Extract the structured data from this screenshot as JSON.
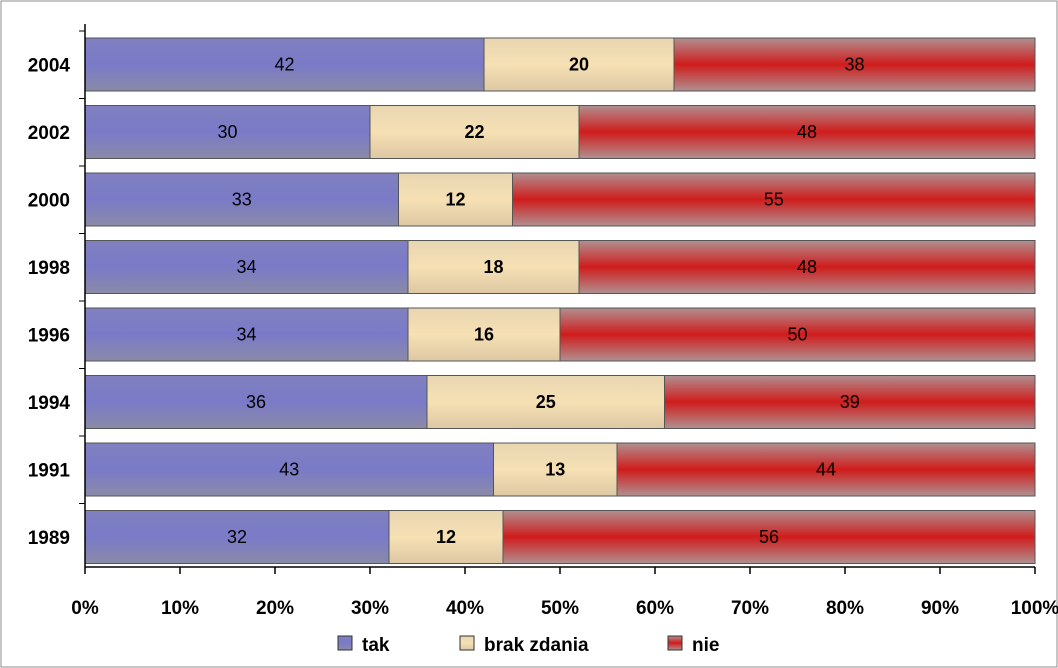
{
  "chart_data": {
    "type": "bar",
    "orientation": "horizontal",
    "stacked": "percent",
    "categories": [
      "2004",
      "2002",
      "2000",
      "1998",
      "1996",
      "1994",
      "1991",
      "1989"
    ],
    "series": [
      {
        "name": "tak",
        "values": [
          42,
          30,
          33,
          34,
          34,
          36,
          43,
          32
        ],
        "color": "#7b7bc8"
      },
      {
        "name": "brak zdania",
        "values": [
          20,
          22,
          12,
          18,
          16,
          25,
          13,
          12
        ],
        "color": "#f3dcae"
      },
      {
        "name": "nie",
        "values": [
          38,
          48,
          55,
          48,
          50,
          39,
          44,
          56
        ],
        "color": "#c83232"
      }
    ],
    "x_ticks": [
      "0%",
      "10%",
      "20%",
      "30%",
      "40%",
      "50%",
      "60%",
      "70%",
      "80%",
      "90%",
      "100%"
    ],
    "xlim": [
      0,
      100
    ],
    "grid": false,
    "legend_position": "bottom"
  }
}
